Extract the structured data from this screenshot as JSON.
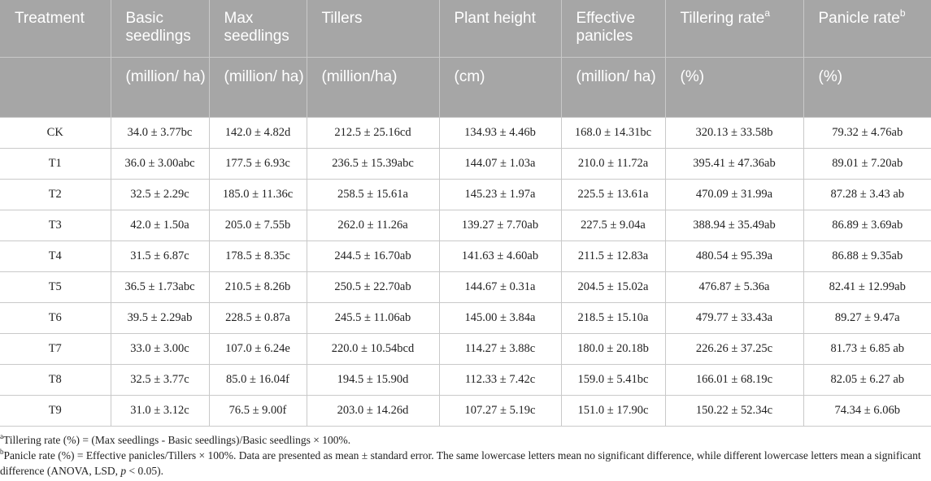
{
  "table": {
    "headers": [
      {
        "label": "Treatment",
        "sup": "",
        "unit": ""
      },
      {
        "label": "Basic seedlings",
        "sup": "",
        "unit": "(million/ ha)"
      },
      {
        "label": "Max seedlings",
        "sup": "",
        "unit": "(million/ ha)"
      },
      {
        "label": "Tillers",
        "sup": "",
        "unit": "(million/ha)"
      },
      {
        "label": "Plant height",
        "sup": "",
        "unit": "(cm)"
      },
      {
        "label": "Effective panicles",
        "sup": "",
        "unit": "(million/ ha)"
      },
      {
        "label": "Tillering rate",
        "sup": "a",
        "unit": "(%)"
      },
      {
        "label": "Panicle rate",
        "sup": "b",
        "unit": "(%)"
      }
    ],
    "rows": [
      [
        "CK",
        "34.0 ± 3.77bc",
        "142.0 ± 4.82d",
        "212.5 ± 25.16cd",
        "134.93 ± 4.46b",
        "168.0 ± 14.31bc",
        "320.13 ± 33.58b",
        "79.32 ± 4.76ab"
      ],
      [
        "T1",
        "36.0 ± 3.00abc",
        "177.5 ± 6.93c",
        "236.5 ± 15.39abc",
        "144.07 ± 1.03a",
        "210.0 ± 11.72a",
        "395.41 ± 47.36ab",
        "89.01 ± 7.20ab"
      ],
      [
        "T2",
        "32.5 ± 2.29c",
        "185.0 ± 11.36c",
        "258.5 ± 15.61a",
        "145.23 ± 1.97a",
        "225.5 ± 13.61a",
        "470.09 ± 31.99a",
        "87.28 ± 3.43 ab"
      ],
      [
        "T3",
        "42.0 ± 1.50a",
        "205.0 ± 7.55b",
        "262.0 ± 11.26a",
        "139.27 ± 7.70ab",
        "227.5 ± 9.04a",
        "388.94 ± 35.49ab",
        "86.89 ± 3.69ab"
      ],
      [
        "T4",
        "31.5 ± 6.87c",
        "178.5 ± 8.35c",
        "244.5 ± 16.70ab",
        "141.63 ± 4.60ab",
        "211.5 ± 12.83a",
        "480.54 ± 95.39a",
        "86.88 ± 9.35ab"
      ],
      [
        "T5",
        "36.5 ± 1.73abc",
        "210.5 ± 8.26b",
        "250.5 ± 22.70ab",
        "144.67 ± 0.31a",
        "204.5 ± 15.02a",
        "476.87 ± 5.36a",
        "82.41 ± 12.99ab"
      ],
      [
        "T6",
        "39.5 ± 2.29ab",
        "228.5 ± 0.87a",
        "245.5 ± 11.06ab",
        "145.00 ± 3.84a",
        "218.5 ± 15.10a",
        "479.77 ± 33.43a",
        "89.27 ± 9.47a"
      ],
      [
        "T7",
        "33.0 ± 3.00c",
        "107.0 ± 6.24e",
        "220.0 ± 10.54bcd",
        "114.27 ± 3.88c",
        "180.0 ± 20.18b",
        "226.26 ± 37.25c",
        "81.73 ± 6.85 ab"
      ],
      [
        "T8",
        "32.5 ± 3.77c",
        "85.0 ± 16.04f",
        "194.5 ± 15.90d",
        "112.33 ± 7.42c",
        "159.0 ± 5.41bc",
        "166.01 ± 68.19c",
        "82.05 ± 6.27 ab"
      ],
      [
        "T9",
        "31.0 ± 3.12c",
        "76.5 ± 9.00f",
        "203.0 ± 14.26d",
        "107.27 ± 5.19c",
        "151.0 ± 17.90c",
        "150.22 ± 52.34c",
        "74.34 ± 6.06b"
      ]
    ]
  },
  "footnotes": {
    "a": {
      "mark": "a",
      "text": "Tillering rate (%) = (Max seedlings - Basic seedlings)/Basic seedlings × 100%."
    },
    "b": {
      "mark": "b",
      "text_before_p": "Panicle rate (%) = Effective panicles/Tillers × 100%. Data are presented as mean ± standard error. The same lowercase letters mean no significant difference, while different lowercase letters mean a significant difference (ANOVA, LSD, ",
      "p_symbol": "p",
      "text_after_p": " < 0.05)."
    }
  },
  "colors": {
    "header_bg": "#a6a6a6",
    "header_text": "#ffffff",
    "grid": "#c9c9c9"
  }
}
